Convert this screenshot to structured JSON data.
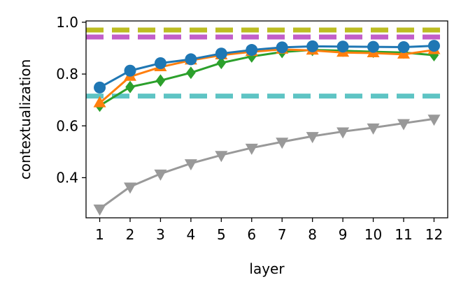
{
  "chart_data": {
    "type": "line",
    "title": "",
    "xlabel": "layer",
    "ylabel": "contextualization",
    "x": [
      1,
      2,
      3,
      4,
      5,
      6,
      7,
      8,
      9,
      10,
      11,
      12
    ],
    "xlim": [
      0.55,
      12.45
    ],
    "ylim": [
      0.245,
      1.005
    ],
    "x_ticks": [
      "1",
      "2",
      "3",
      "4",
      "5",
      "6",
      "7",
      "8",
      "9",
      "10",
      "11",
      "12"
    ],
    "y_ticks": [
      {
        "value": 0.4,
        "label": "0.4"
      },
      {
        "value": 0.6,
        "label": "0.6"
      },
      {
        "value": 0.8,
        "label": "0.8"
      },
      {
        "value": 1.0,
        "label": "1.0"
      }
    ],
    "grid": false,
    "legend": "none",
    "reference_lines": [
      {
        "value": 0.97,
        "color": "#bcbd22"
      },
      {
        "value": 0.943,
        "color": "#c25ec9"
      },
      {
        "value": 0.715,
        "color": "#5ec4c4"
      }
    ],
    "series": [
      {
        "color": "#999999",
        "marker": "triangle-down",
        "values": [
          0.28,
          0.365,
          0.415,
          0.455,
          0.487,
          0.515,
          0.538,
          0.56,
          0.578,
          0.593,
          0.61,
          0.627
        ]
      },
      {
        "color": "#2ca02c",
        "marker": "diamond",
        "values": [
          0.678,
          0.75,
          0.775,
          0.805,
          0.843,
          0.868,
          0.885,
          0.893,
          0.89,
          0.886,
          0.883,
          0.873
        ]
      },
      {
        "color": "#ff7f0e",
        "marker": "triangle-up",
        "values": [
          0.688,
          0.79,
          0.827,
          0.853,
          0.873,
          0.886,
          0.895,
          0.891,
          0.883,
          0.881,
          0.876,
          0.893
        ]
      },
      {
        "color": "#1f77b4",
        "marker": "circle",
        "values": [
          0.748,
          0.813,
          0.842,
          0.857,
          0.879,
          0.893,
          0.903,
          0.907,
          0.906,
          0.905,
          0.904,
          0.909
        ]
      }
    ]
  }
}
